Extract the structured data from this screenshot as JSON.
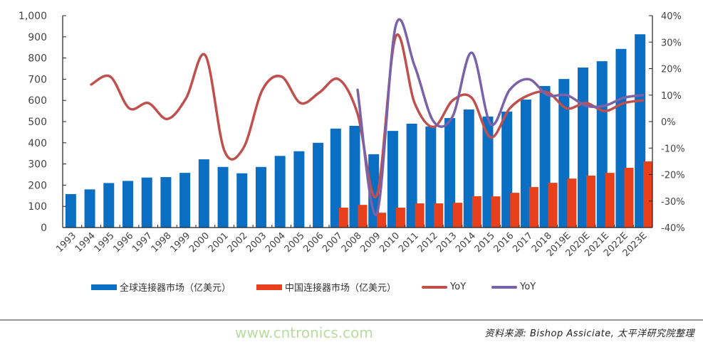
{
  "chart_data": {
    "type": "bar",
    "categories": [
      "1993",
      "1994",
      "1995",
      "1996",
      "1997",
      "1998",
      "1999",
      "2000",
      "2001",
      "2002",
      "2003",
      "2004",
      "2005",
      "2006",
      "2007",
      "2008",
      "2009",
      "2010",
      "2011",
      "2012",
      "2013",
      "2014",
      "2015",
      "2016",
      "2017",
      "2018",
      "2019E",
      "2020E",
      "2021E",
      "2022E",
      "2023E"
    ],
    "y_left": {
      "range": [
        0,
        1000
      ],
      "ticks": [
        "0",
        "100",
        "200",
        "300",
        "400",
        "500",
        "600",
        "700",
        "800",
        "900",
        "1,000"
      ]
    },
    "y_right": {
      "range": [
        -40,
        40
      ],
      "ticks": [
        "-40%",
        "-30%",
        "-20%",
        "-10%",
        "0%",
        "10%",
        "20%",
        "30%",
        "40%"
      ]
    },
    "series": [
      {
        "name": "全球连接器市场（亿美元）",
        "type": "bar",
        "axis": "left",
        "color": "#0a6fc2",
        "values": [
          158,
          180,
          210,
          220,
          236,
          238,
          258,
          322,
          286,
          256,
          286,
          338,
          360,
          400,
          467,
          480,
          346,
          456,
          490,
          477,
          517,
          557,
          524,
          547,
          604,
          668,
          701,
          755,
          785,
          843,
          912
        ]
      },
      {
        "name": "中国连接器市场（亿美元）",
        "type": "bar",
        "axis": "left",
        "color": "#e8401c",
        "values": [
          null,
          null,
          null,
          null,
          null,
          null,
          null,
          null,
          null,
          null,
          null,
          null,
          null,
          null,
          94,
          107,
          70,
          94,
          114,
          114,
          117,
          148,
          147,
          164,
          191,
          211,
          231,
          245,
          258,
          282,
          312
        ]
      },
      {
        "name": "YoY",
        "type": "line",
        "axis": "right",
        "color": "#c0504d",
        "values": [
          null,
          14,
          17,
          5,
          7,
          1,
          9,
          25,
          -11,
          -10,
          12,
          17,
          7,
          11,
          16,
          3,
          -28,
          32,
          7,
          -2,
          8,
          9,
          -6,
          5,
          10,
          11,
          5,
          7,
          4,
          7,
          8
        ]
      },
      {
        "name": "YoY",
        "type": "line",
        "axis": "right",
        "color": "#7b61a8",
        "values": [
          null,
          null,
          null,
          null,
          null,
          null,
          null,
          null,
          null,
          null,
          null,
          null,
          null,
          null,
          null,
          12,
          -35,
          36,
          21,
          0,
          2,
          26,
          -1,
          12,
          16,
          10,
          10,
          6,
          6,
          9,
          10
        ]
      }
    ],
    "grid": false,
    "legend_position": "bottom"
  },
  "source": "资料来源: Bishop Assiciate, 太平洋研究院整理",
  "watermark": "www.cntronics.com"
}
